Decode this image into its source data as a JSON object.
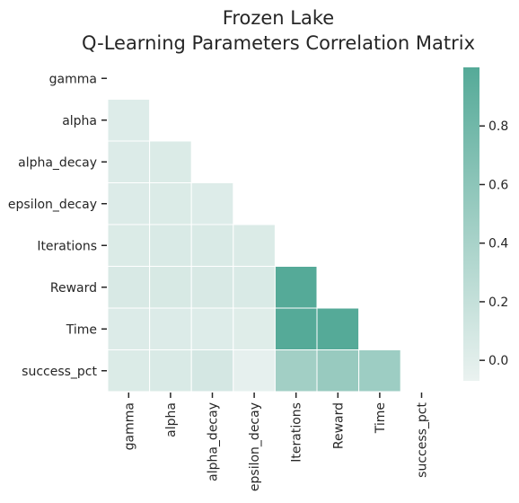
{
  "chart_data": {
    "type": "heatmap",
    "title": "Frozen Lake",
    "subtitle": "Q-Learning Parameters Correlation Matrix",
    "labels": [
      "gamma",
      "alpha",
      "alpha_decay",
      "epsilon_decay",
      "Iterations",
      "Reward",
      "Time",
      "success_pct"
    ],
    "mask": "upper-triangle-and-diagonal",
    "matrix": [
      [
        null,
        null,
        null,
        null,
        null,
        null,
        null,
        null
      ],
      [
        0.02,
        null,
        null,
        null,
        null,
        null,
        null,
        null
      ],
      [
        0.03,
        0.04,
        null,
        null,
        null,
        null,
        null,
        null
      ],
      [
        0.03,
        0.04,
        0.02,
        null,
        null,
        null,
        null,
        null
      ],
      [
        0.04,
        0.05,
        0.05,
        0.04,
        null,
        null,
        null,
        null
      ],
      [
        0.06,
        0.07,
        0.06,
        0.05,
        1.0,
        null,
        null,
        null
      ],
      [
        0.03,
        0.03,
        0.02,
        0.01,
        1.0,
        1.0,
        null,
        null
      ],
      [
        0.04,
        0.05,
        0.09,
        -0.04,
        0.45,
        0.52,
        0.48,
        null
      ]
    ],
    "colorbar": {
      "min": -0.07,
      "max": 1.0,
      "ticks": [
        0.0,
        0.2,
        0.4,
        0.6,
        0.8
      ],
      "tick_labels": [
        "0.0",
        "0.2",
        "0.4",
        "0.6",
        "0.8"
      ],
      "color_low": "#eaf2f0",
      "color_high": "#55aa98"
    },
    "grid_line_color": "#ffffff"
  }
}
